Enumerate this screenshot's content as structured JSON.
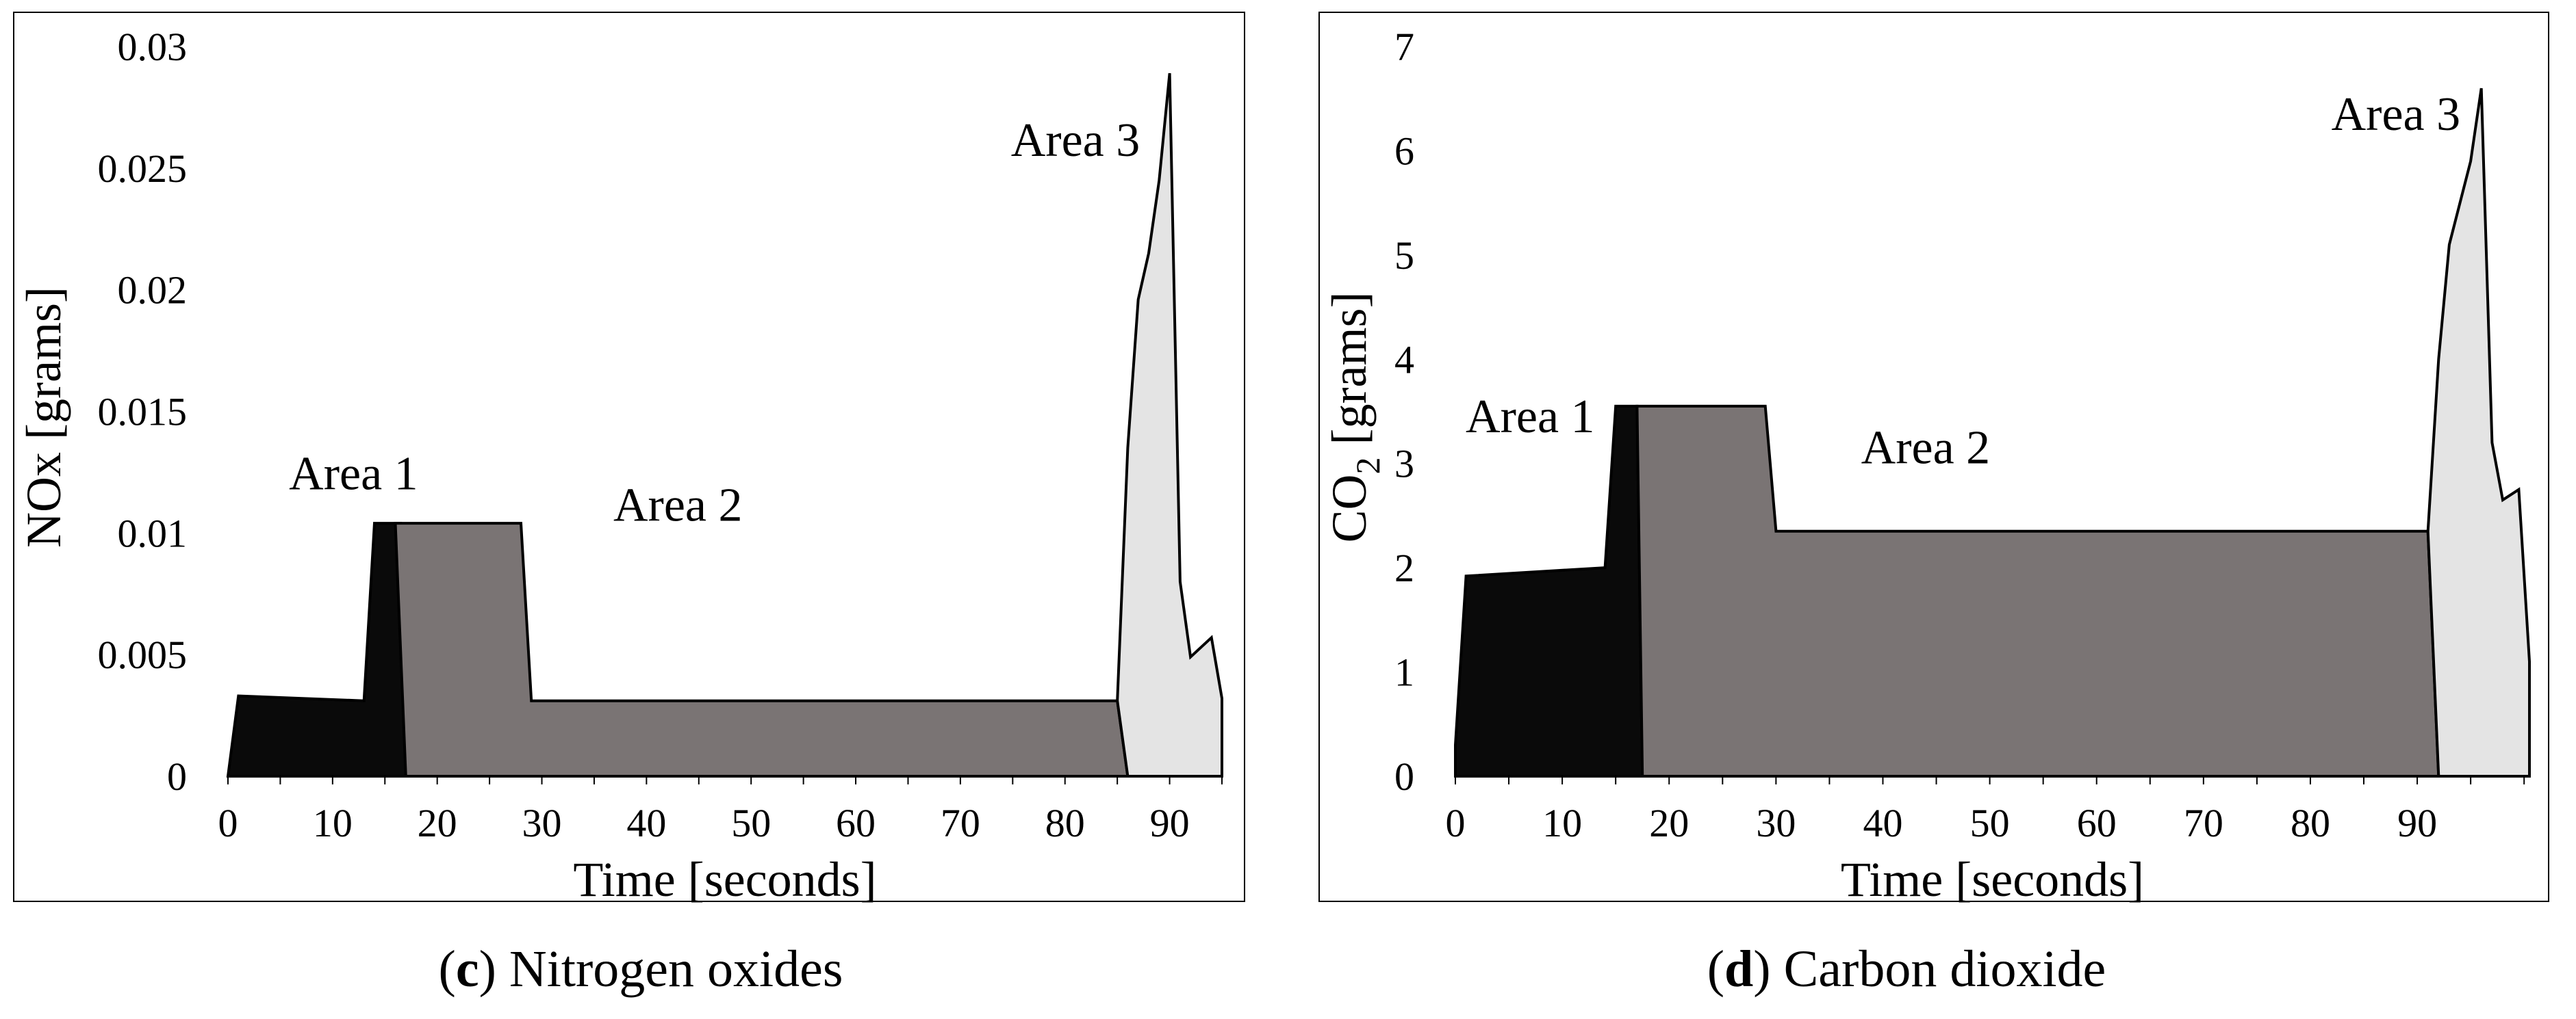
{
  "colors": {
    "area1": "#0a0a0a",
    "area2": "#7a7474",
    "area3": "#e4e4e4",
    "stroke": "#000000",
    "frame": "#000000"
  },
  "chart_data": [
    {
      "type": "area",
      "xlabel": "Time [seconds]",
      "ylabel": "NOx [grams]",
      "ylabel_sub": "",
      "ylabel_tail": "",
      "xlim": [
        0,
        95
      ],
      "ylim": [
        0,
        0.03
      ],
      "xticks": [
        0,
        10,
        20,
        30,
        40,
        50,
        60,
        70,
        80,
        90
      ],
      "yticks": [
        0,
        0.005,
        0.01,
        0.015,
        0.02,
        0.025,
        0.03
      ],
      "ytick_labels": [
        "0",
        "0.005",
        "0.01",
        "0.015",
        "0.02",
        "0.025",
        "0.03"
      ],
      "caption": {
        "letter": "c",
        "text": "Nitrogen oxides"
      },
      "series": [
        {
          "name": "Area 1",
          "label_at": [
            12,
            0.0118
          ],
          "points": [
            [
              0,
              0
            ],
            [
              1,
              0.0033
            ],
            [
              13,
              0.0031
            ],
            [
              14,
              0.0104
            ],
            [
              16.5,
              0.0104
            ],
            [
              17,
              0
            ]
          ]
        },
        {
          "name": "Area 2",
          "label_at": [
            43,
            0.0105
          ],
          "points": [
            [
              16,
              0.0104
            ],
            [
              28,
              0.0104
            ],
            [
              29,
              0.0031
            ],
            [
              85,
              0.0031
            ],
            [
              86,
              0
            ],
            [
              17,
              0
            ]
          ]
        },
        {
          "name": "Area 3",
          "label_at": [
            81,
            0.0255
          ],
          "points": [
            [
              85,
              0.0031
            ],
            [
              86,
              0.0135
            ],
            [
              87,
              0.0196
            ],
            [
              88,
              0.0215
            ],
            [
              89,
              0.0245
            ],
            [
              90,
              0.0289
            ],
            [
              91,
              0.008
            ],
            [
              92,
              0.0049
            ],
            [
              94,
              0.0057
            ],
            [
              95,
              0.0032
            ],
            [
              95,
              0
            ],
            [
              86,
              0
            ]
          ]
        }
      ]
    },
    {
      "type": "area",
      "xlabel": "Time [seconds]",
      "ylabel": "CO",
      "ylabel_sub": "2",
      "ylabel_tail": " [grams]",
      "xlim": [
        0,
        95
      ],
      "ylim": [
        0,
        7
      ],
      "xticks": [
        0,
        10,
        20,
        30,
        40,
        50,
        60,
        70,
        80,
        90
      ],
      "yticks": [
        0,
        1,
        2,
        3,
        4,
        5,
        6,
        7
      ],
      "ytick_labels": [
        "0",
        "1",
        "2",
        "3",
        "4",
        "5",
        "6",
        "7"
      ],
      "caption": {
        "letter": "d",
        "text": "Carbon dioxide"
      },
      "series": [
        {
          "name": "Area 1",
          "label_at": [
            7,
            3.3
          ],
          "points": [
            [
              0,
              0.3
            ],
            [
              1,
              1.92
            ],
            [
              14,
              2.0
            ],
            [
              15,
              3.55
            ],
            [
              17,
              3.55
            ],
            [
              17.5,
              0
            ],
            [
              0,
              0
            ]
          ]
        },
        {
          "name": "Area 2",
          "label_at": [
            44,
            3.0
          ],
          "points": [
            [
              17,
              3.55
            ],
            [
              29,
              3.55
            ],
            [
              30,
              2.35
            ],
            [
              91,
              2.35
            ],
            [
              92,
              0
            ],
            [
              17.5,
              0
            ]
          ]
        },
        {
          "name": "Area 3",
          "label_at": [
            88,
            6.2
          ],
          "points": [
            [
              91,
              2.35
            ],
            [
              92,
              4.0
            ],
            [
              93,
              5.1
            ],
            [
              94,
              5.5
            ],
            [
              95,
              5.9
            ],
            [
              96,
              6.6
            ],
            [
              97,
              3.2
            ],
            [
              98,
              2.65
            ],
            [
              99.5,
              2.75
            ],
            [
              100.5,
              1.1
            ],
            [
              100.5,
              0
            ],
            [
              92,
              0
            ]
          ]
        }
      ]
    }
  ]
}
